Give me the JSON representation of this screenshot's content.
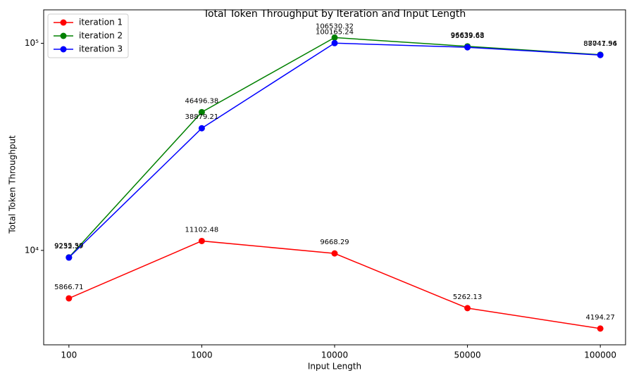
{
  "chart_data": {
    "type": "line",
    "title": "Total Token Throughput by Iteration and Input Length",
    "x_label": "Input Length",
    "y_label": "Total Token Throughput",
    "categories": [
      "100",
      "1000",
      "10000",
      "50000",
      "100000"
    ],
    "series": [
      {
        "name": "iteration 1",
        "color": "#ff0000",
        "values": [
          5866.71,
          11102.48,
          9668.29,
          5262.13,
          4194.27
        ]
      },
      {
        "name": "iteration 2",
        "color": "#008000",
        "values": [
          9255.59,
          46496.38,
          106530.32,
          96639.63,
          88041.56
        ]
      },
      {
        "name": "iteration 3",
        "color": "#0000ff",
        "values": [
          9232.37,
          38879.21,
          100165.24,
          95639.68,
          87747.94
        ]
      }
    ],
    "ylim": [
      3500,
      145000
    ],
    "yticks": [
      {
        "value": 10000,
        "label": "10⁴"
      },
      {
        "value": 100000,
        "label": "10⁵"
      }
    ],
    "log_y": true,
    "legend": "upper left"
  }
}
